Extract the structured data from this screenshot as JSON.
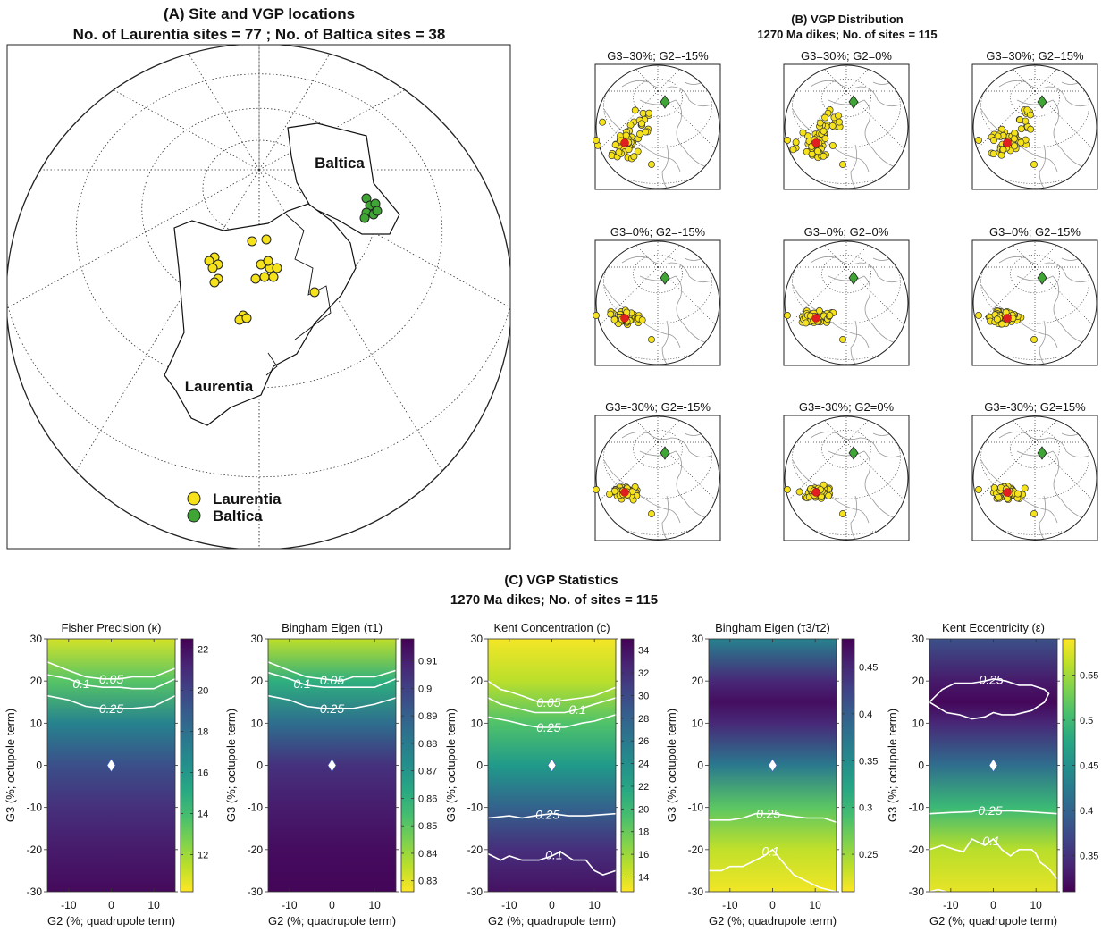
{
  "panel_a": {
    "title_line1": "(A) Site and VGP locations",
    "title_line2": "No. of Laurentia sites = 77 ; No. of Baltica sites = 38",
    "label_baltica": "Baltica",
    "label_laurentia": "Laurentia",
    "legend": [
      {
        "label": "Laurentia",
        "color": "#f5e21a"
      },
      {
        "label": "Baltica",
        "color": "#3fa535"
      }
    ]
  },
  "panel_b": {
    "title_line1": "(B) VGP Distribution",
    "title_line2": "1270 Ma dikes; No. of sites = 115",
    "maps": [
      {
        "label": "G3=30%; G2=-15%",
        "G3": 30,
        "G2": -15
      },
      {
        "label": "G3=30%; G2=0%",
        "G3": 30,
        "G2": 0
      },
      {
        "label": "G3=30%; G2=15%",
        "G3": 30,
        "G2": 15
      },
      {
        "label": "G3=0%; G2=-15%",
        "G3": 0,
        "G2": -15
      },
      {
        "label": "G3=0%; G2=0%",
        "G3": 0,
        "G2": 0
      },
      {
        "label": "G3=0%; G2=15%",
        "G3": 0,
        "G2": 15
      },
      {
        "label": "G3=-30%; G2=-15%",
        "G3": -30,
        "G2": -15
      },
      {
        "label": "G3=-30%; G2=0%",
        "G3": -30,
        "G2": 0
      },
      {
        "label": "G3=-30%; G2=15%",
        "G3": -30,
        "G2": 15
      }
    ],
    "colors": {
      "vgp": "#f5e21a",
      "mean": "#e02020",
      "pole": "#3fa535"
    }
  },
  "panel_c": {
    "title_line1": "(C) VGP Statistics",
    "title_line2": "1270 Ma dikes; No. of sites = 115"
  },
  "chart_data": [
    {
      "type": "heatmap",
      "title": "Fisher Precision (κ)",
      "xlabel": "G2 (%; quadrupole term)",
      "ylabel": "G3 (%; octupole term)",
      "xlim": [
        -15,
        15
      ],
      "ylim": [
        -30,
        30
      ],
      "xticks": [
        "-10",
        "0",
        "10"
      ],
      "yticks": [
        "30",
        "20",
        "10",
        "0",
        "-10",
        "-20",
        "-30"
      ],
      "colorbar": {
        "range": [
          10.2,
          22.5
        ],
        "ticks": [
          "12",
          "14",
          "16",
          "18",
          "20",
          "22"
        ],
        "colormap": "viridis_r"
      },
      "profile_g3": [
        30,
        20,
        10,
        0,
        -10,
        -20,
        -30
      ],
      "profile_values": [
        11,
        13.5,
        17,
        19.5,
        20.8,
        21.6,
        22.2
      ],
      "marker": {
        "G2": 0,
        "G3": 0
      },
      "contours": [
        {
          "label": "0.05",
          "points": [
            [
              -15,
              24.5
            ],
            [
              -10,
              22.5
            ],
            [
              -6,
              21
            ],
            [
              -2,
              20.5
            ],
            [
              2,
              20.5
            ],
            [
              5,
              21
            ],
            [
              10,
              21
            ],
            [
              15,
              23
            ]
          ]
        },
        {
          "label": "0.1",
          "points": [
            [
              -15,
              21.5
            ],
            [
              -10,
              20.5
            ],
            [
              -6,
              19
            ],
            [
              -2,
              18.5
            ],
            [
              2,
              18.5
            ],
            [
              5,
              18.2
            ],
            [
              10,
              18.2
            ],
            [
              15,
              20.5
            ]
          ]
        },
        {
          "label": "0.25",
          "points": [
            [
              -15,
              16.5
            ],
            [
              -10,
              15.5
            ],
            [
              -6,
              14
            ],
            [
              -2,
              13.5
            ],
            [
              2,
              13.5
            ],
            [
              5,
              13.5
            ],
            [
              10,
              14
            ],
            [
              15,
              16.5
            ]
          ]
        }
      ]
    },
    {
      "type": "heatmap",
      "title": "Bingham Eigen (τ1)",
      "xlabel": "G2 (%; quadrupole term)",
      "ylabel": "G3 (%; octupole term)",
      "xlim": [
        -15,
        15
      ],
      "ylim": [
        -30,
        30
      ],
      "xticks": [
        "-10",
        "0",
        "10"
      ],
      "yticks": [
        "30",
        "20",
        "10",
        "0",
        "-10",
        "-20",
        "-30"
      ],
      "colorbar": {
        "range": [
          0.826,
          0.918
        ],
        "ticks": [
          "0.83",
          "0.84",
          "0.85",
          "0.86",
          "0.87",
          "0.88",
          "0.89",
          "0.9",
          "0.91"
        ],
        "colormap": "viridis_r"
      },
      "profile_g3": [
        30,
        20,
        10,
        0,
        -10,
        -20,
        -30
      ],
      "profile_values": [
        0.835,
        0.86,
        0.885,
        0.905,
        0.911,
        0.915,
        0.917
      ],
      "marker": {
        "G2": 0,
        "G3": 0
      },
      "contours": [
        {
          "label": "0.05",
          "points": [
            [
              -15,
              24.5
            ],
            [
              -10,
              22.5
            ],
            [
              -6,
              21
            ],
            [
              -2,
              20.5
            ],
            [
              2,
              20
            ],
            [
              5,
              21
            ],
            [
              10,
              21
            ],
            [
              15,
              22.5
            ]
          ]
        },
        {
          "label": "0.1",
          "points": [
            [
              -15,
              22
            ],
            [
              -10,
              20.5
            ],
            [
              -6,
              19
            ],
            [
              -2,
              18.5
            ],
            [
              2,
              18.5
            ],
            [
              5,
              18.5
            ],
            [
              10,
              18.5
            ],
            [
              15,
              20.5
            ]
          ]
        },
        {
          "label": "0.25",
          "points": [
            [
              -15,
              16.5
            ],
            [
              -10,
              15.5
            ],
            [
              -6,
              14
            ],
            [
              -2,
              13.5
            ],
            [
              2,
              13.5
            ],
            [
              5,
              13.5
            ],
            [
              10,
              14.5
            ],
            [
              15,
              16
            ]
          ]
        }
      ]
    },
    {
      "type": "heatmap",
      "title": "Kent Concentration (c)",
      "xlabel": "G2 (%; quadrupole term)",
      "ylabel": "G3 (%; octupole term)",
      "xlim": [
        -15,
        15
      ],
      "ylim": [
        -30,
        30
      ],
      "xticks": [
        "-10",
        "0",
        "10"
      ],
      "yticks": [
        "30",
        "20",
        "10",
        "0",
        "-10",
        "-20",
        "-30"
      ],
      "colorbar": {
        "range": [
          12.7,
          35
        ],
        "ticks": [
          "14",
          "16",
          "18",
          "20",
          "22",
          "24",
          "26",
          "28",
          "30",
          "32",
          "34"
        ],
        "colormap": "viridis_r"
      },
      "profile_g3": [
        30,
        20,
        10,
        0,
        -10,
        -20,
        -30
      ],
      "profile_values": [
        13,
        15,
        19,
        23,
        28,
        32,
        34
      ],
      "marker": {
        "G2": 0,
        "G3": 0
      },
      "contours": [
        {
          "label": "0.05",
          "points": [
            [
              -15,
              20
            ],
            [
              -12,
              18
            ],
            [
              -10,
              17.5
            ],
            [
              -7,
              16.5
            ],
            [
              -3,
              15
            ],
            [
              0,
              15
            ],
            [
              3,
              15.5
            ],
            [
              7,
              16
            ],
            [
              10,
              16.5
            ],
            [
              15,
              18.5
            ]
          ]
        },
        {
          "label": "0.1",
          "points": [
            [
              -15,
              16
            ],
            [
              -12,
              14.5
            ],
            [
              -8,
              13.5
            ],
            [
              -4,
              12.5
            ],
            [
              0,
              12.5
            ],
            [
              3,
              12.5
            ],
            [
              7,
              13.5
            ],
            [
              10,
              14.5
            ],
            [
              15,
              16
            ]
          ]
        },
        {
          "label": "0.25",
          "points": [
            [
              -15,
              11.5
            ],
            [
              -10,
              10.5
            ],
            [
              -6,
              9.5
            ],
            [
              -3,
              9
            ],
            [
              0,
              9
            ],
            [
              3,
              9
            ],
            [
              7,
              10
            ],
            [
              10,
              10.5
            ],
            [
              15,
              12
            ]
          ]
        },
        {
          "label": "0.25",
          "points": [
            [
              -15,
              -12.5
            ],
            [
              -10,
              -12
            ],
            [
              -7,
              -12.5
            ],
            [
              -4,
              -12
            ],
            [
              0,
              -11.5
            ],
            [
              4,
              -12
            ],
            [
              8,
              -12
            ],
            [
              15,
              -11.5
            ]
          ]
        },
        {
          "label": "0.1",
          "points": [
            [
              -15,
              -21
            ],
            [
              -12,
              -22.5
            ],
            [
              -10,
              -21.5
            ],
            [
              -7,
              -22.5
            ],
            [
              -3,
              -22.5
            ],
            [
              0,
              -21.5
            ],
            [
              2,
              -20.5
            ],
            [
              5,
              -22.5
            ],
            [
              8,
              -22.5
            ],
            [
              10,
              -25
            ],
            [
              12,
              -26
            ],
            [
              15,
              -25
            ]
          ]
        }
      ]
    },
    {
      "type": "heatmap",
      "title": "Bingham Eigen (τ3/τ2)",
      "xlabel": "G2 (%; quadrupole term)",
      "ylabel": "G3 (%; octupole term)",
      "xlim": [
        -15,
        15
      ],
      "ylim": [
        -30,
        30
      ],
      "xticks": [
        "-10",
        "0",
        "10"
      ],
      "yticks": [
        "30",
        "20",
        "10",
        "0",
        "-10",
        "-20",
        "-30"
      ],
      "colorbar": {
        "range": [
          0.21,
          0.48
        ],
        "ticks": [
          "0.25",
          "0.3",
          "0.35",
          "0.4",
          "0.45"
        ],
        "colormap": "viridis_r"
      },
      "profile_g3": [
        30,
        20,
        15,
        10,
        0,
        -10,
        -20,
        -30
      ],
      "profile_values": [
        0.36,
        0.45,
        0.47,
        0.45,
        0.37,
        0.28,
        0.235,
        0.215
      ],
      "marker": {
        "G2": 0,
        "G3": 0
      },
      "contours": [
        {
          "label": "0.25",
          "points": [
            [
              -15,
              -13
            ],
            [
              -10,
              -13
            ],
            [
              -7,
              -12.5
            ],
            [
              -4,
              -11.5
            ],
            [
              0,
              -11.5
            ],
            [
              4,
              -12
            ],
            [
              8,
              -12.5
            ],
            [
              12,
              -12.5
            ],
            [
              15,
              -13.5
            ]
          ]
        },
        {
          "label": "0.1",
          "points": [
            [
              -15,
              -25
            ],
            [
              -12,
              -25
            ],
            [
              -10,
              -24
            ],
            [
              -7,
              -24
            ],
            [
              -4,
              -22.5
            ],
            [
              -2,
              -21.5
            ],
            [
              0,
              -20
            ],
            [
              2,
              -22.5
            ],
            [
              5,
              -26
            ],
            [
              8,
              -27.5
            ],
            [
              11,
              -29
            ],
            [
              15,
              -30
            ]
          ]
        }
      ]
    },
    {
      "type": "heatmap",
      "title": "Kent Eccentricity (ε)",
      "xlabel": "G2 (%; quadrupole term)",
      "ylabel": "G3 (%; octupole term)",
      "xlim": [
        -15,
        15
      ],
      "ylim": [
        -30,
        30
      ],
      "xticks": [
        "-10",
        "0",
        "10"
      ],
      "yticks": [
        "30",
        "20",
        "10",
        "0",
        "-10",
        "-20",
        "-30"
      ],
      "colorbar": {
        "range": [
          0.31,
          0.59
        ],
        "ticks": [
          "0.35",
          "0.4",
          "0.45",
          "0.5",
          "0.55"
        ],
        "colormap": "viridis"
      },
      "profile_g3": [
        30,
        20,
        15,
        10,
        0,
        -10,
        -20,
        -30
      ],
      "profile_values": [
        0.38,
        0.33,
        0.315,
        0.34,
        0.41,
        0.5,
        0.56,
        0.58
      ],
      "marker": {
        "G2": 0,
        "G3": 0
      },
      "contours": [
        {
          "label": "0.25",
          "points": [
            [
              -15,
              15
            ],
            [
              -12,
              18
            ],
            [
              -9,
              19.5
            ],
            [
              -5,
              19.5
            ],
            [
              -2,
              20
            ],
            [
              0,
              20.5
            ],
            [
              3,
              20
            ],
            [
              6,
              19
            ],
            [
              9,
              19
            ],
            [
              12,
              18
            ],
            [
              13,
              17
            ],
            [
              12,
              15
            ],
            [
              9,
              13
            ],
            [
              5,
              12
            ],
            [
              2,
              12
            ],
            [
              0,
              12.5
            ],
            [
              -2,
              11.5
            ],
            [
              -5,
              11
            ],
            [
              -8,
              12
            ],
            [
              -11,
              12.5
            ],
            [
              -15,
              15
            ]
          ]
        },
        {
          "label": "0.25",
          "points": [
            [
              -15,
              -11.5
            ],
            [
              -10,
              -11.2
            ],
            [
              -5,
              -11
            ],
            [
              -3,
              -10.5
            ],
            [
              0,
              -10.8
            ],
            [
              4,
              -10.8
            ],
            [
              8,
              -11
            ],
            [
              15,
              -11.5
            ]
          ]
        },
        {
          "label": "0.1",
          "points": [
            [
              -15,
              -20
            ],
            [
              -12,
              -19
            ],
            [
              -9,
              -20
            ],
            [
              -7,
              -20.5
            ],
            [
              -5,
              -17.5
            ],
            [
              -4,
              -18
            ],
            [
              -2,
              -19
            ],
            [
              0,
              -17.5
            ],
            [
              2,
              -20
            ],
            [
              4,
              -21.5
            ],
            [
              6,
              -20
            ],
            [
              9,
              -20
            ],
            [
              10,
              -21
            ],
            [
              11,
              -23
            ],
            [
              13,
              -24.5
            ],
            [
              15,
              -27
            ]
          ]
        },
        {
          "label": "",
          "points": [
            [
              -15,
              -30
            ],
            [
              -13,
              -29.5
            ],
            [
              -11,
              -30
            ]
          ]
        }
      ]
    }
  ]
}
